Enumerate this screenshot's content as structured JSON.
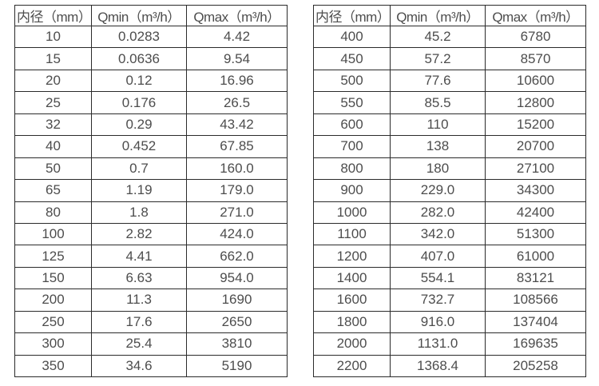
{
  "page": {
    "background_color": "#ffffff",
    "border_color": "#2b2b2b",
    "text_color": "#4d4d4d"
  },
  "tables": [
    {
      "name": "flow-range-table-small-diameters",
      "headers": [
        "内径（mm）",
        "Qmin（m³/h）",
        "Qmax（m³/h）"
      ],
      "rows": [
        [
          "10",
          "0.0283",
          "4.42"
        ],
        [
          "15",
          "0.0636",
          "9.54"
        ],
        [
          "20",
          "0.12",
          "16.96"
        ],
        [
          "25",
          "0.176",
          "26.5"
        ],
        [
          "32",
          "0.29",
          "43.42"
        ],
        [
          "40",
          "0.452",
          "67.85"
        ],
        [
          "50",
          "0.7",
          "160.0"
        ],
        [
          "65",
          "1.19",
          "179.0"
        ],
        [
          "80",
          "1.8",
          "271.0"
        ],
        [
          "100",
          "2.82",
          "424.0"
        ],
        [
          "125",
          "4.41",
          "662.0"
        ],
        [
          "150",
          "6.63",
          "954.0"
        ],
        [
          "200",
          "11.3",
          "1690"
        ],
        [
          "250",
          "17.6",
          "2650"
        ],
        [
          "300",
          "25.4",
          "3810"
        ],
        [
          "350",
          "34.6",
          "5190"
        ]
      ]
    },
    {
      "name": "flow-range-table-large-diameters",
      "headers": [
        "内径（mm）",
        "Qmin（m³/h）",
        "Qmax（m³/h）"
      ],
      "rows": [
        [
          "400",
          "45.2",
          "6780"
        ],
        [
          "450",
          "57.2",
          "8570"
        ],
        [
          "500",
          "77.6",
          "10600"
        ],
        [
          "550",
          "85.5",
          "12800"
        ],
        [
          "600",
          "110",
          "15200"
        ],
        [
          "700",
          "138",
          "20700"
        ],
        [
          "800",
          "180",
          "27100"
        ],
        [
          "900",
          "229.0",
          "34300"
        ],
        [
          "1000",
          "282.0",
          "42400"
        ],
        [
          "1100",
          "342.0",
          "51300"
        ],
        [
          "1200",
          "407.0",
          "61000"
        ],
        [
          "1400",
          "554.1",
          "83121"
        ],
        [
          "1600",
          "732.7",
          "108566"
        ],
        [
          "1800",
          "916.0",
          "137404"
        ],
        [
          "2000",
          "1131.0",
          "169635"
        ],
        [
          "2200",
          "1368.4",
          "205258"
        ]
      ]
    }
  ]
}
